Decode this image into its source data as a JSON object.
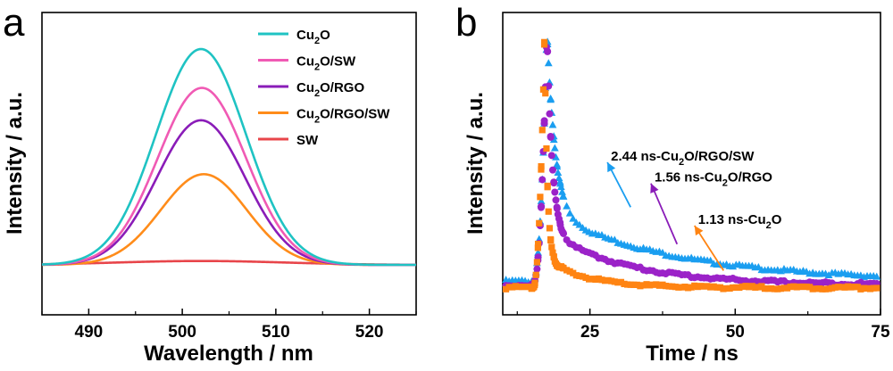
{
  "chart_data": [
    {
      "panel": "a",
      "type": "line",
      "title": "",
      "xlabel": "Wavelength / nm",
      "ylabel": "Intensity / a.u.",
      "xlim": [
        485,
        525
      ],
      "ylim": [
        0,
        1.06
      ],
      "xticks": [
        490,
        500,
        510,
        520
      ],
      "legend_position": "top-right",
      "series": [
        {
          "name": "Cu2O",
          "label_main": "Cu",
          "label_sub": "2",
          "label_rest": "O",
          "color": "#1fc3c3",
          "peak": 502,
          "amplitude": 1.0,
          "sigma": 4.8,
          "baseline": 0.0
        },
        {
          "name": "Cu2O/SW",
          "label_main": "Cu",
          "label_sub": "2",
          "label_rest": "O/SW",
          "color": "#f05ab4",
          "peak": 502.1,
          "amplitude": 0.82,
          "sigma": 4.7,
          "baseline": 0.0
        },
        {
          "name": "Cu2O/RGO",
          "label_main": "Cu",
          "label_sub": "2",
          "label_rest": "O/RGO",
          "color": "#8a1cb8",
          "peak": 502,
          "amplitude": 0.67,
          "sigma": 4.7,
          "baseline": 0.0
        },
        {
          "name": "Cu2O/RGO/SW",
          "label_main": "Cu",
          "label_sub": "2",
          "label_rest": "O/RGO/SW",
          "color": "#ff8c1a",
          "peak": 502.3,
          "amplitude": 0.42,
          "sigma": 4.6,
          "baseline": 0.0
        },
        {
          "name": "SW",
          "label_main": "SW",
          "label_sub": "",
          "label_rest": "",
          "color": "#e8454a",
          "peak": 502,
          "amplitude": 0.018,
          "sigma": 9.0,
          "baseline": 0.0
        }
      ]
    },
    {
      "panel": "b",
      "type": "scatter",
      "title": "",
      "xlabel": "Time / ns",
      "ylabel": "Intensity / a.u.",
      "xlim": [
        10,
        75
      ],
      "ylim": [
        0,
        1.05
      ],
      "xticks": [
        25,
        50,
        75
      ],
      "series": [
        {
          "name": "2.44 ns-Cu2O/RGO/SW",
          "marker": "triangle",
          "color": "#1a9ef0",
          "rise_start": 15.2,
          "peak_time": 17.6,
          "tail_amp": 0.26,
          "tail_tau": 22,
          "fast_tau": 1.4,
          "baseline": 0.05
        },
        {
          "name": "1.56 ns-Cu2O/RGO",
          "marker": "circle",
          "color": "#9b22c8",
          "rise_start": 15.2,
          "peak_time": 17.6,
          "tail_amp": 0.2,
          "tail_tau": 14,
          "fast_tau": 0.9,
          "baseline": 0.035
        },
        {
          "name": "1.13 ns-Cu2O",
          "marker": "square",
          "color": "#ff8412",
          "rise_start": 15.2,
          "peak_time": 17.2,
          "tail_amp": 0.11,
          "tail_tau": 7,
          "fast_tau": 0.45,
          "baseline": 0.025
        }
      ],
      "annotations": [
        {
          "main": "2.44 ns-Cu",
          "sub": "2",
          "rest": "O/RGO/SW",
          "color": "#1a9ef0",
          "from": [
            32,
            0.33
          ],
          "to": [
            28,
            0.5
          ]
        },
        {
          "main": "1.56 ns-Cu",
          "sub": "2",
          "rest": "O/RGO",
          "color": "#8a1cb8",
          "from": [
            40,
            0.19
          ],
          "to": [
            35.5,
            0.42
          ]
        },
        {
          "main": "1.13 ns-Cu",
          "sub": "2",
          "rest": "O",
          "color": "#ff8412",
          "from": [
            48,
            0.09
          ],
          "to": [
            43,
            0.26
          ]
        }
      ]
    }
  ],
  "panel_labels": {
    "a": "a",
    "b": "b"
  }
}
